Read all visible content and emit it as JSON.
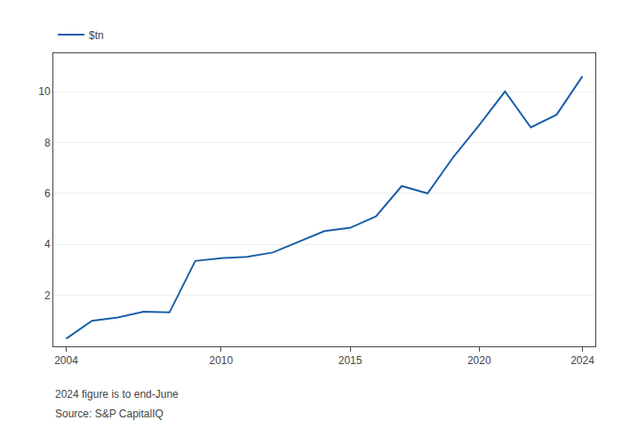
{
  "chart_data": {
    "type": "line",
    "x": [
      2004,
      2005,
      2006,
      2007,
      2008,
      2009,
      2010,
      2011,
      2012,
      2013,
      2014,
      2015,
      2016,
      2017,
      2018,
      2019,
      2020,
      2021,
      2022,
      2023,
      2024
    ],
    "series": [
      {
        "name": "$tn",
        "color": "#1a5ea8",
        "values": [
          0.3,
          1.0,
          1.13,
          1.36,
          1.33,
          3.35,
          3.46,
          3.51,
          3.68,
          4.1,
          4.52,
          4.65,
          5.1,
          6.29,
          6.0,
          7.43,
          8.68,
          10.0,
          8.59,
          9.09,
          10.6
        ]
      }
    ],
    "xlim": [
      2003.5,
      2024.5
    ],
    "xticks": [
      2004,
      2010,
      2015,
      2020,
      2024
    ],
    "ylim": [
      0,
      11.5
    ],
    "yticks": [
      2,
      4,
      6,
      8,
      10
    ],
    "grid": "y",
    "legend": "top left",
    "annotations": [
      "2024 figure is to end-June",
      "Source: S&P CapitalIQ"
    ]
  }
}
